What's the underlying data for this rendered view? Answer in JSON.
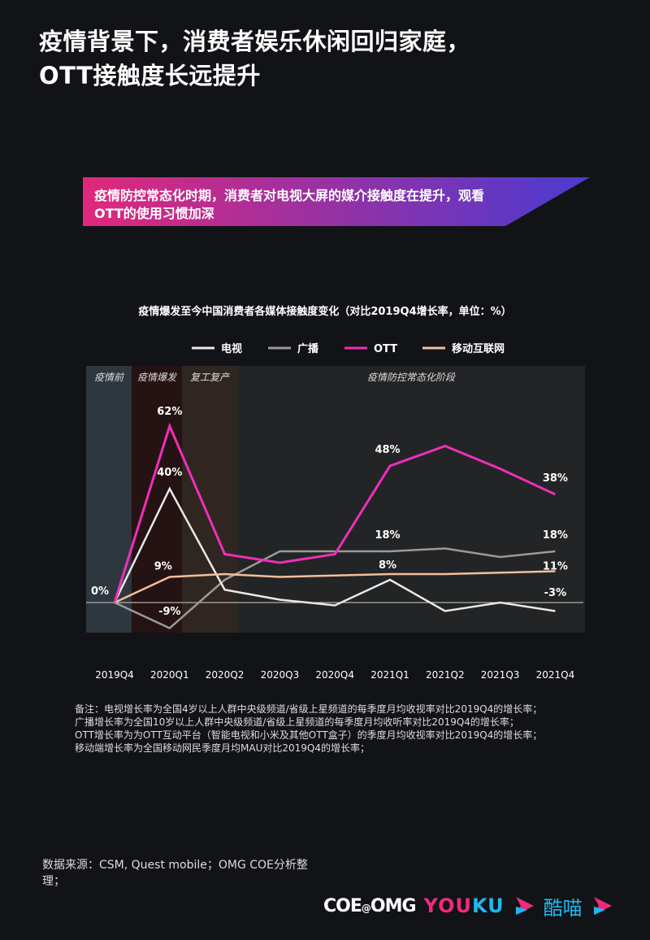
{
  "title": [
    "疫情背景下，消费者娱乐休闲回归家庭，",
    "OTT接触度长远提升"
  ],
  "banner": {
    "text": "疫情防控常态化时期，消费者对电视大屏的媒介接触度在提升，观看OTT的使用习惯加深",
    "gradient_start": "#e0287a",
    "gradient_end": "#4a3bd0"
  },
  "chart_data": {
    "type": "line",
    "title": "疫情爆发至今中国消费者各媒体接触度变化（对比2019Q4增长率，单位：%）",
    "xlabel": "",
    "ylabel": "",
    "categories": [
      "2019Q4",
      "2020Q1",
      "2020Q2",
      "2020Q3",
      "2020Q4",
      "2021Q1",
      "2021Q2",
      "2021Q3",
      "2021Q4"
    ],
    "ylim": [
      -11,
      83
    ],
    "legend_position": "top",
    "phases": [
      {
        "label": "疫情前",
        "from": 0,
        "to": 0,
        "color": "#2e363e"
      },
      {
        "label": "疫情爆发",
        "from": 1,
        "to": 1,
        "color": "#251313"
      },
      {
        "label": "复工复产",
        "from": 2,
        "to": 2,
        "color": "#2f2621"
      },
      {
        "label": "疫情防控常态化阶段",
        "from": 3,
        "to": 8,
        "color": "#232426"
      }
    ],
    "series": [
      {
        "name": "电视",
        "color": "#e8e8e8",
        "values": [
          0,
          40,
          4.5,
          1,
          -1,
          8,
          -3,
          0,
          -3
        ]
      },
      {
        "name": "广播",
        "color": "#9a9a9a",
        "values": [
          0,
          -9,
          8,
          18,
          18,
          18,
          19,
          16,
          18
        ]
      },
      {
        "name": "OTT",
        "color": "#ee2fb8",
        "values": [
          0,
          62,
          17,
          14,
          17,
          48,
          55,
          47,
          38
        ]
      },
      {
        "name": "移动互联网",
        "color": "#f2bf9c",
        "values": [
          0,
          9,
          10,
          9,
          9.5,
          10,
          10,
          10.5,
          11
        ]
      }
    ],
    "data_labels": [
      {
        "series": 2,
        "index": 0,
        "text": "0%"
      },
      {
        "series": 2,
        "index": 1,
        "text": "62%"
      },
      {
        "series": 0,
        "index": 1,
        "text": "40%"
      },
      {
        "series": 3,
        "index": 1,
        "text": "9%"
      },
      {
        "series": 1,
        "index": 1,
        "text": "-9%"
      },
      {
        "series": 2,
        "index": 5,
        "text": "48%"
      },
      {
        "series": 1,
        "index": 5,
        "text": "18%"
      },
      {
        "series": 0,
        "index": 5,
        "text": "8%"
      },
      {
        "series": 2,
        "index": 8,
        "text": "38%"
      },
      {
        "series": 1,
        "index": 8,
        "text": "18%"
      },
      {
        "series": 3,
        "index": 8,
        "text": "11%"
      },
      {
        "series": 0,
        "index": 8,
        "text": "-3%"
      }
    ]
  },
  "notes": [
    "备注：电视增长率为全国4岁以上人群中央级频道/省级上星频道的每季度月均收视率对比2019Q4的增长率；",
    "广播增长率为全国10岁以上人群中央级频道/省级上星频道的每季度月均收听率对比2019Q4的增长率；",
    "OTT增长率为为OTT互动平台（智能电视和小米及其他OTT盒子）的季度月均收视率对比2019Q4的增长率；",
    "移动端增长率为全国移动网民季度月均MAU对比2019Q4的增长率；"
  ],
  "source": "数据来源：CSM, Quest mobile；OMG COE分析整理；",
  "logos": {
    "coe_a": "COE",
    "coe_at": "@",
    "coe_b": "OMG",
    "youku_a": "YOU",
    "youku_b": "KU",
    "kumiao": "酷喵"
  }
}
